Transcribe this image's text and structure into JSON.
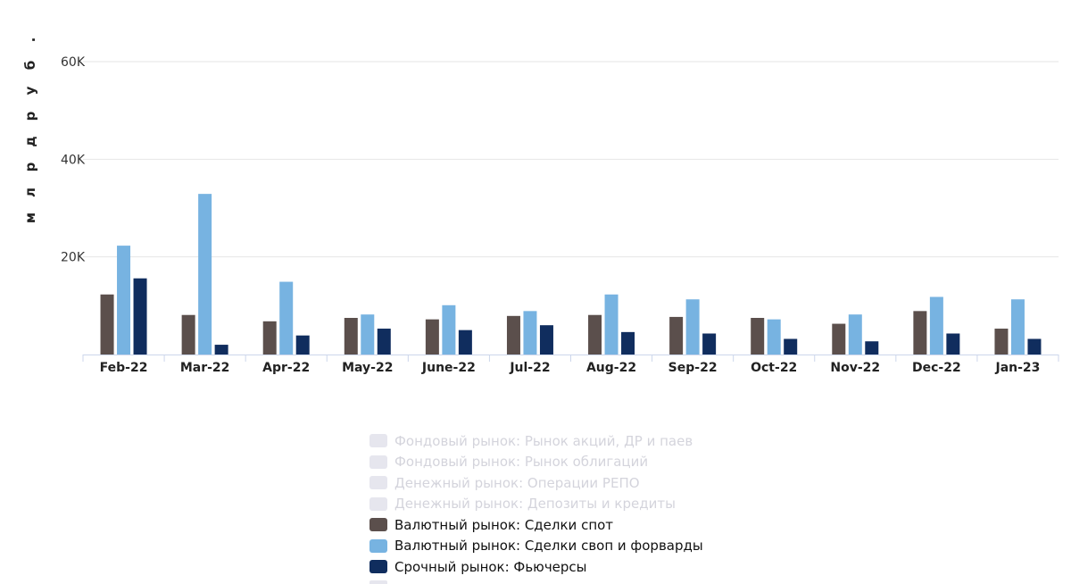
{
  "chart_data": {
    "type": "bar",
    "ylabel": "млрд руб.",
    "yticks": [
      "20K",
      "40K",
      "60K"
    ],
    "ylim": [
      0,
      60000
    ],
    "grid": true,
    "categories": [
      "Feb-22",
      "Mar-22",
      "Apr-22",
      "May-22",
      "June-22",
      "Jul-22",
      "Aug-22",
      "Sep-22",
      "Oct-22",
      "Nov-22",
      "Dec-22",
      "Jan-23"
    ],
    "series": [
      {
        "name": "Валютный рынок: Сделки спот",
        "color": "#5b4f4c",
        "values": [
          12300,
          8100,
          6800,
          7500,
          7200,
          7900,
          8100,
          7700,
          7500,
          6300,
          8900,
          5300
        ]
      },
      {
        "name": "Валютный рынок: Сделки своп и форварды",
        "color": "#77b3e1",
        "values": [
          22300,
          32900,
          14900,
          8200,
          10100,
          8900,
          12300,
          11300,
          7200,
          8200,
          11800,
          11300
        ]
      },
      {
        "name": "Срочный рынок: Фьючерсы",
        "color": "#102d5e",
        "values": [
          15600,
          2000,
          3900,
          5300,
          5000,
          6000,
          4600,
          4300,
          3200,
          2700,
          4300,
          3200
        ]
      }
    ],
    "legend_position": "bottom"
  },
  "legend": {
    "items": [
      {
        "label": "Фондовый рынок: Рынок акций, ДР и паев",
        "color": "#e6e6ee",
        "hidden": true
      },
      {
        "label": "Фондовый рынок: Рынок облигаций",
        "color": "#e6e6ee",
        "hidden": true
      },
      {
        "label": "Денежный рынок: Операции РЕПО",
        "color": "#e6e6ee",
        "hidden": true
      },
      {
        "label": "Денежный рынок: Депозиты и кредиты",
        "color": "#e6e6ee",
        "hidden": true
      },
      {
        "label": "Валютный рынок: Сделки спот",
        "color": "#5b4f4c",
        "hidden": false
      },
      {
        "label": "Валютный рынок: Сделки своп и форварды",
        "color": "#77b3e1",
        "hidden": false
      },
      {
        "label": "Срочный рынок: Фьючерсы",
        "color": "#102d5e",
        "hidden": false
      }
    ]
  }
}
